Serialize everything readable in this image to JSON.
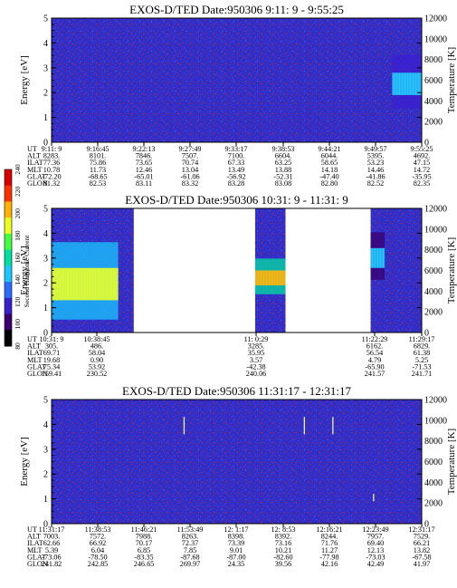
{
  "colors": {
    "background_blue": "#2e2ec8",
    "speckle_red": "#b0284a",
    "speckle_violet": "#6a2ad8",
    "data_gap": "#ffffff",
    "axis": "#000000"
  },
  "colorbar": {
    "label": "Second Harmonic Current",
    "ticks": [
      "80",
      "100",
      "120",
      "140",
      "160",
      "180",
      "200",
      "220",
      "240"
    ],
    "range": [
      80,
      240
    ],
    "colors": [
      "#000000",
      "#3a0070",
      "#3a1fd0",
      "#2a6cff",
      "#18c8ff",
      "#00e0a0",
      "#40ff40",
      "#e8ff20",
      "#ffb000",
      "#ff3000",
      "#d80000"
    ]
  },
  "chart_data": [
    {
      "type": "heatmap",
      "title": "EXOS-D/TED   Date:950306  9:11: 9 - 9:55:25",
      "ylabel": "Energy [eV]",
      "y2label": "Temperature [K]",
      "ylim": [
        0,
        5
      ],
      "y2lim": [
        0,
        12000
      ],
      "yticks": [
        "0",
        "1",
        "2",
        "3",
        "4",
        "5"
      ],
      "y2ticks": [
        "0",
        "2000",
        "4000",
        "6000",
        "8000",
        "10000",
        "12000"
      ],
      "ephemeris_labels": [
        "UT",
        "ALT",
        "ILAT",
        "MLT",
        "GLAT",
        "GLON"
      ],
      "ephemeris": [
        [
          "9:11: 9",
          "8283.",
          "77.36",
          "10.78",
          "-72.20",
          "81.32"
        ],
        [
          "9:16:45",
          "8101.",
          "75.86",
          "11.73",
          "-68.65",
          "82.53"
        ],
        [
          "9:22:13",
          "7846.",
          "73.65",
          "12.46",
          "-65.01",
          "83.11"
        ],
        [
          "9:27:49",
          "7507.",
          "70.74",
          "13.04",
          "-61.06",
          "83.32"
        ],
        [
          "9:33:17",
          "7100.",
          "67.33",
          "13.49",
          "-56.92",
          "83.28"
        ],
        [
          "9:38:53",
          "6604.",
          "63.25",
          "13.88",
          "-52.31",
          "83.08"
        ],
        [
          "9:44:21",
          "6044.",
          "58.65",
          "14.18",
          "-47.40",
          "82.80"
        ],
        [
          "9:49:57",
          "5395.",
          "53.23",
          "14.46",
          "-41.86",
          "82.52"
        ],
        [
          "9:55:25",
          "4692.",
          "47.15",
          "14.72",
          "-35.95",
          "82.35"
        ]
      ],
      "data_segments": [
        [
          0,
          1
        ]
      ],
      "features": [
        {
          "x_start": 0.92,
          "x_end": 1.0,
          "energy_low": 1.9,
          "energy_high": 2.8,
          "level": 150
        }
      ],
      "spikes": []
    },
    {
      "type": "heatmap",
      "title": "EXOS-D/TED   Date:950306  10:31: 9 - 11:31: 9",
      "ylabel": "Energy [eV]",
      "y2label": "Temperature [K]",
      "ylim": [
        0,
        5
      ],
      "y2lim": [
        0,
        12000
      ],
      "yticks": [
        "0",
        "1",
        "2",
        "3",
        "4",
        "5"
      ],
      "y2ticks": [
        "0",
        "2000",
        "4000",
        "6000",
        "8000",
        "10000",
        "12000"
      ],
      "ephemeris_labels": [
        "UT",
        "ALT",
        "ILAT",
        "MLT",
        "GLAT",
        "GLON"
      ],
      "ephemeris": [
        [
          "10:31: 9",
          "305.",
          "69.71",
          "19.68",
          "75.34",
          "159.41"
        ],
        [
          "10:38:45",
          "486.",
          "58.04",
          "0.90",
          "53.92",
          "230.52"
        ],
        [
          "11: 0:29",
          "3285.",
          "35.95",
          "3.57",
          "-42.38",
          "240.06"
        ],
        [
          "11:22:29",
          "6162.",
          "56.54",
          "4.79",
          "-65.90",
          "241.57"
        ],
        [
          "11:29:17",
          "6829.",
          "61.38",
          "5.25",
          "-71.53",
          "241.71"
        ]
      ],
      "data_segments": [
        [
          0,
          0.222
        ],
        [
          0.55,
          0.632
        ],
        [
          0.862,
          1
        ]
      ],
      "features": [
        {
          "x_start": 0.0,
          "x_end": 0.18,
          "energy_low": 1.3,
          "energy_high": 2.6,
          "level": 185
        },
        {
          "x_start": 0.55,
          "x_end": 0.632,
          "energy_low": 1.9,
          "energy_high": 2.5,
          "level": 200
        },
        {
          "x_start": 0.862,
          "x_end": 0.9,
          "energy_low": 2.6,
          "energy_high": 3.4,
          "level": 140
        }
      ],
      "spikes": []
    },
    {
      "type": "heatmap",
      "title": "EXOS-D/TED   Date:950306  11:31:17 - 12:31:17",
      "ylabel": "Energy [eV]",
      "y2label": "Temperature [K]",
      "ylim": [
        0,
        5
      ],
      "y2lim": [
        0,
        12000
      ],
      "yticks": [
        "0",
        "1",
        "2",
        "3",
        "4",
        "5"
      ],
      "y2ticks": [
        "0",
        "2000",
        "4000",
        "6000",
        "8000",
        "10000",
        "12000"
      ],
      "ephemeris_labels": [
        "UT",
        "ALT",
        "ILAT",
        "MLT",
        "GLAT",
        "GLON"
      ],
      "ephemeris": [
        [
          "11:31:17",
          "7003.",
          "62.66",
          "5.39",
          "-73.06",
          "241.82"
        ],
        [
          "11:38:53",
          "7572.",
          "66.92",
          "6.04",
          "-78.50",
          "242.85"
        ],
        [
          "11:46:21",
          "7988.",
          "70.17",
          "6.85",
          "-83.35",
          "246.65"
        ],
        [
          "11:53:49",
          "8263.",
          "72.37",
          "7.85",
          "-87.68",
          "269.97"
        ],
        [
          "12: 1:17",
          "8398.",
          "73.39",
          "9.01",
          "-87.00",
          "24.35"
        ],
        [
          "12: 8:53",
          "8392.",
          "73.16",
          "10.21",
          "-82.60",
          "39.56"
        ],
        [
          "12:16:21",
          "8244.",
          "71.76",
          "11.27",
          "-77.98",
          "42.16"
        ],
        [
          "12:23:49",
          "7957.",
          "69.40",
          "12.13",
          "-73.03",
          "42.49"
        ],
        [
          "12:31:17",
          "7529.",
          "66.21",
          "13.82",
          "-67.58",
          "41.97"
        ]
      ],
      "data_segments": [
        [
          0,
          1
        ]
      ],
      "features": [],
      "spikes": [
        {
          "x": 0.358,
          "energy_low": 3.6,
          "energy_high": 4.3
        },
        {
          "x": 0.683,
          "energy_low": 3.6,
          "energy_high": 4.3
        },
        {
          "x": 0.76,
          "energy_low": 3.6,
          "energy_high": 4.3
        },
        {
          "x": 0.87,
          "energy_low": 0.9,
          "energy_high": 1.2
        }
      ]
    }
  ]
}
